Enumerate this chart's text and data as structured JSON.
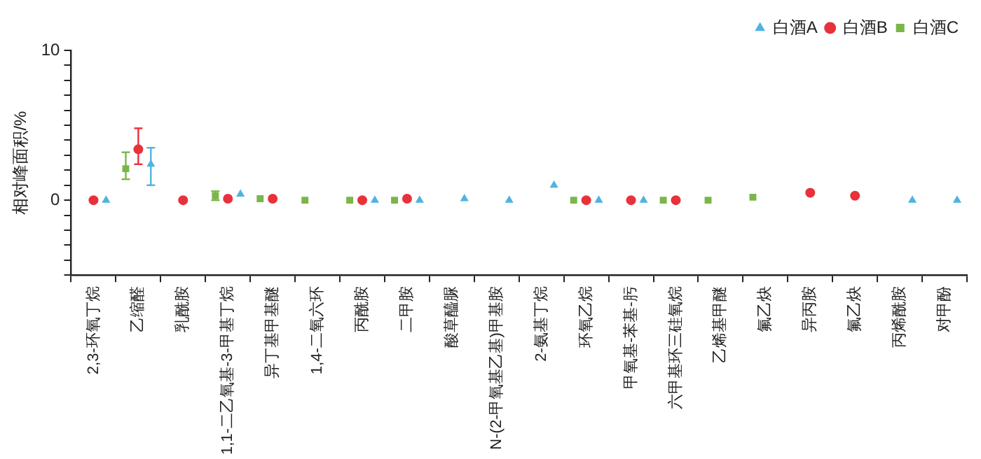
{
  "chart_data": {
    "type": "scatter",
    "ylabel": "相对峰面积/%",
    "categories": [
      "2,3-环氧丁烷",
      "乙缩醛",
      "乳酰胺",
      "1,1-二乙氧基-3-甲基丁烷",
      "异丁基甲基醚",
      "1,4-二氧六环",
      "丙酰胺",
      "二甲胺",
      "酸草醯脲",
      "N-(2-甲氧基乙基)甲基胺",
      "2-氨基丁烷",
      "环氧乙烷",
      "甲氧基-苯基-肟",
      "六甲基环三硅氧烷",
      "乙烯基甲醚",
      "氟乙炔",
      "异丙胺",
      "氟乙炔",
      "丙烯酰胺",
      "对甲酚"
    ],
    "ylim": [
      -5,
      10
    ],
    "yticks": [
      {
        "value": -5,
        "label": null
      },
      {
        "value": -4,
        "label": null
      },
      {
        "value": -3,
        "label": null
      },
      {
        "value": -2,
        "label": null
      },
      {
        "value": -1,
        "label": null
      },
      0,
      {
        "value": 1,
        "label": null
      },
      {
        "value": 2,
        "label": null
      },
      {
        "value": 3,
        "label": null
      },
      {
        "value": 4,
        "label": null
      },
      {
        "value": 5,
        "label": null
      },
      {
        "value": 6,
        "label": null
      },
      {
        "value": 7,
        "label": null
      },
      {
        "value": 8,
        "label": null
      },
      {
        "value": 9,
        "label": null
      },
      10
    ],
    "grid": false,
    "legend": "top right",
    "series": [
      {
        "name": "白酒A",
        "color": "#4fb3e0",
        "marker": "triangle",
        "values": [
          0,
          2.4,
          null,
          0.4,
          null,
          null,
          0,
          0,
          0.1,
          0,
          1.0,
          0,
          0,
          null,
          null,
          null,
          null,
          null,
          0,
          0
        ],
        "errors": [
          null,
          [
            1.0,
            3.5
          ],
          null,
          null,
          null,
          null,
          null,
          null,
          null,
          null,
          null,
          null,
          null,
          null,
          null,
          null,
          null,
          null,
          null,
          null
        ]
      },
      {
        "name": "白酒B",
        "color": "#e8313a",
        "marker": "circle",
        "values": [
          0,
          3.4,
          0,
          0.1,
          0.1,
          null,
          0,
          0.1,
          null,
          null,
          null,
          0,
          0,
          0,
          null,
          null,
          0.5,
          0.3,
          null,
          null
        ],
        "errors": [
          null,
          [
            2.4,
            4.8
          ],
          null,
          null,
          null,
          null,
          null,
          null,
          null,
          null,
          null,
          null,
          null,
          null,
          null,
          null,
          null,
          null,
          null,
          null
        ]
      },
      {
        "name": "白酒C",
        "color": "#7ab648",
        "marker": "square",
        "values": [
          null,
          2.1,
          null,
          0.3,
          0.1,
          0,
          0,
          0,
          null,
          null,
          null,
          0,
          null,
          0,
          0,
          0.2,
          null,
          null,
          null,
          null
        ],
        "errors": [
          null,
          [
            1.4,
            3.2
          ],
          null,
          [
            0,
            0.6
          ],
          null,
          null,
          null,
          null,
          null,
          null,
          null,
          null,
          null,
          null,
          null,
          null,
          null,
          null,
          null,
          null
        ]
      }
    ]
  }
}
